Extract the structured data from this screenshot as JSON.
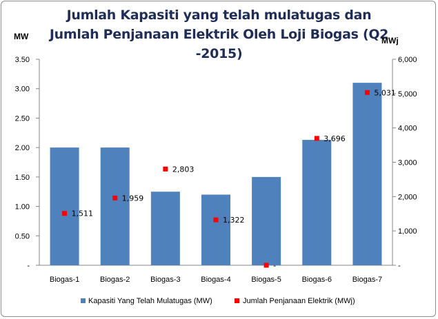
{
  "chart_data": {
    "type": "bar",
    "title": "Jumlah Kapasiti yang telah mulatugas dan Jumlah Penjanaan Elektrik Oleh Loji Biogas (Q2 -2015)",
    "left_axis_unit": "MW",
    "right_axis_unit": "MWj",
    "categories": [
      "Biogas-1",
      "Biogas-2",
      "Biogas-3",
      "Biogas-4",
      "Biogas-5",
      "Biogas-6",
      "Biogas-7"
    ],
    "left_axis": {
      "range": [
        0,
        3.5
      ],
      "ticks": [
        0,
        0.5,
        1.0,
        1.5,
        2.0,
        2.5,
        3.0,
        3.5
      ],
      "tick_labels": [
        "-",
        "0.50",
        "1.00",
        "1.50",
        "2.00",
        "2.50",
        "3.00",
        "3.50"
      ]
    },
    "right_axis": {
      "range": [
        0,
        6000
      ],
      "ticks": [
        0,
        1000,
        2000,
        3000,
        4000,
        5000,
        6000
      ],
      "tick_labels": [
        "-",
        "1,000",
        "2,000",
        "3,000",
        "4,000",
        "5,000",
        "6,000"
      ]
    },
    "series": [
      {
        "name": "Kapasiti Yang Telah Mulatugas (MW)",
        "type": "bar",
        "axis": "left",
        "color": "#4f81bd",
        "values": [
          2.0,
          2.0,
          1.25,
          1.2,
          1.5,
          2.13,
          3.1
        ]
      },
      {
        "name": "Jumlah Penjanaan Elektrik (MWj)",
        "type": "scatter",
        "axis": "right",
        "color": "#ff0000",
        "values": [
          1511,
          1959,
          2803,
          1322,
          0,
          3696,
          5031
        ],
        "data_labels": [
          "1,511",
          "1,959",
          "2,803",
          "1,322",
          "-",
          "3,696",
          "5,031"
        ]
      }
    ],
    "grid": false,
    "legend_position": "bottom"
  }
}
